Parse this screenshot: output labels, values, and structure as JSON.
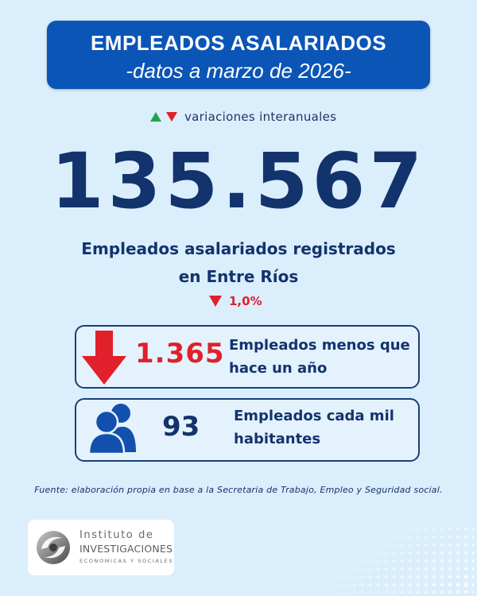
{
  "header": {
    "title": "EMPLEADOS ASALARIADOS",
    "subtitle": "-datos a marzo de 2026-"
  },
  "legend": {
    "text": "variaciones interanuales",
    "up_color": "#22a34a",
    "down_color": "#e0202a"
  },
  "main": {
    "big_number": "135.567",
    "subtitle_line1": "Empleados asalariados registrados",
    "subtitle_line2": "en Entre Ríos",
    "variation": "1,0%"
  },
  "cards": [
    {
      "value": "1.365",
      "desc_line1": "Empleados menos que",
      "desc_line2": "hace un año",
      "icon": "arrow-down-icon"
    },
    {
      "value": "93",
      "desc_line1": "Empleados cada mil",
      "desc_line2": "habitantes",
      "icon": "people-icon"
    }
  ],
  "source": "Fuente: elaboración propia en base a la Secretaria de Trabajo, Empleo y Seguridad social.",
  "logo": {
    "line1": "Instituto de",
    "line2": "INVESTIGACIONES",
    "line3": "ECONOMICAS  Y  SOCIALES"
  },
  "colors": {
    "background": "#dbeefb",
    "header_bg": "#0b55b7",
    "navy": "#13336d",
    "red": "#e0202a"
  }
}
